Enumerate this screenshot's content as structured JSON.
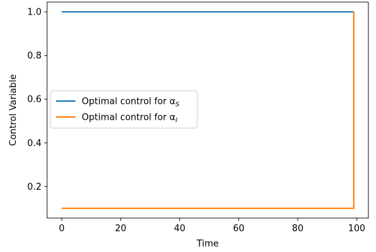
{
  "chart_data": {
    "type": "line",
    "xlabel": "Time",
    "ylabel": "Control Variable",
    "xlim": [
      -4.95,
      103.95
    ],
    "ylim": [
      0.055,
      1.045
    ],
    "xticks": [
      0,
      20,
      40,
      60,
      80,
      100
    ],
    "xtick_labels": [
      "0",
      "20",
      "40",
      "60",
      "80",
      "100"
    ],
    "yticks": [
      0.2,
      0.4,
      0.6,
      0.8,
      1.0
    ],
    "ytick_labels": [
      "0.2",
      "0.4",
      "0.6",
      "0.8",
      "1.0"
    ],
    "grid": false,
    "legend_position": "center-left",
    "series": [
      {
        "name": "Optimal control for α_S",
        "label_main": "Optimal control for α",
        "label_sub": "S",
        "color": "#1f77b4",
        "x": [
          0,
          99
        ],
        "y": [
          1.0,
          1.0
        ]
      },
      {
        "name": "Optimal control for α_I",
        "label_main": "Optimal control for α",
        "label_sub": "I",
        "color": "#ff7f0e",
        "x": [
          0,
          99,
          99
        ],
        "y": [
          0.1,
          0.1,
          1.0
        ]
      }
    ]
  }
}
